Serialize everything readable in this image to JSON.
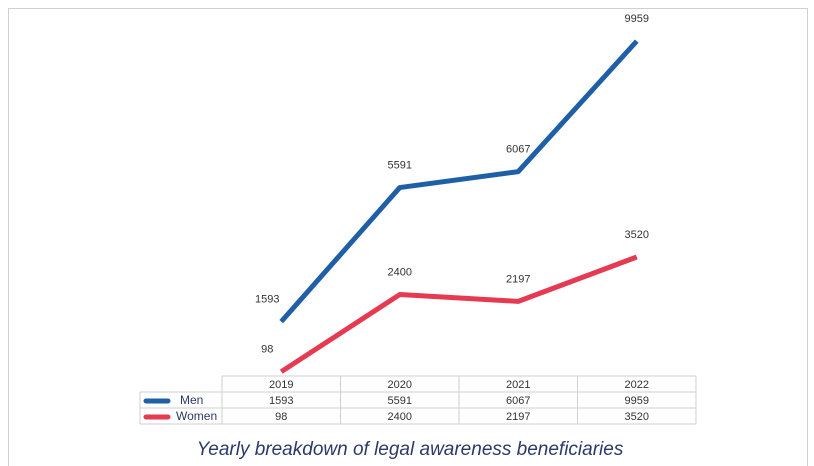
{
  "chart_data": {
    "type": "line",
    "title": "Yearly breakdown of legal awareness beneficiaries",
    "categories": [
      "2019",
      "2020",
      "2021",
      "2022"
    ],
    "series": [
      {
        "name": "Men",
        "color": "#1f5fa6",
        "values": [
          1593,
          5591,
          6067,
          9959
        ]
      },
      {
        "name": "Women",
        "color": "#e53a51",
        "values": [
          98,
          2400,
          2197,
          3520
        ]
      }
    ],
    "ylim": [
      0,
      10500
    ]
  }
}
